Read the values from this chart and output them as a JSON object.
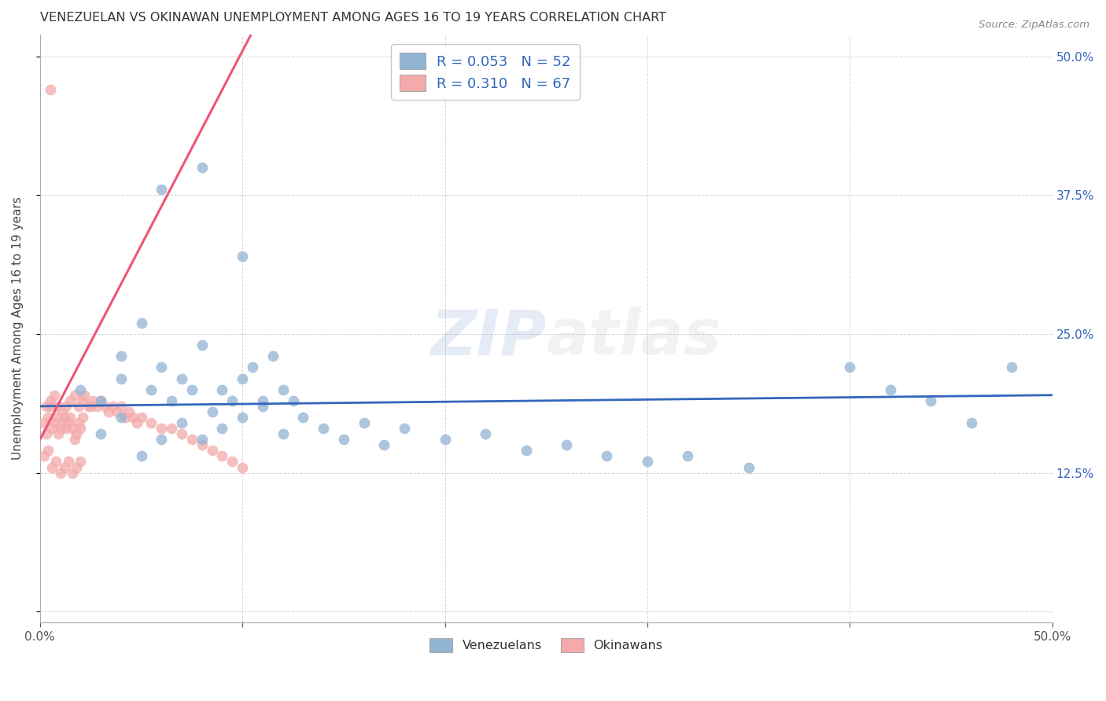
{
  "title": "VENEZUELAN VS OKINAWAN UNEMPLOYMENT AMONG AGES 16 TO 19 YEARS CORRELATION CHART",
  "source": "Source: ZipAtlas.com",
  "ylabel": "Unemployment Among Ages 16 to 19 years",
  "xlim": [
    0,
    0.5
  ],
  "ylim": [
    -0.01,
    0.52
  ],
  "xticks": [
    0.0,
    0.1,
    0.2,
    0.3,
    0.4,
    0.5
  ],
  "xticklabels": [
    "0.0%",
    "",
    "",
    "",
    "",
    "50.0%"
  ],
  "yticks_right": [
    0.0,
    0.125,
    0.25,
    0.375,
    0.5
  ],
  "yticklabels_right": [
    "",
    "12.5%",
    "25.0%",
    "37.5%",
    "50.0%"
  ],
  "watermark_zip": "ZIP",
  "watermark_atlas": "atlas",
  "legend_r_blue": "0.053",
  "legend_n_blue": "52",
  "legend_r_pink": "0.310",
  "legend_n_pink": "67",
  "blue_color": "#92B4D4",
  "pink_color": "#F4AAAA",
  "blue_line_color": "#3366BB",
  "pink_line_color": "#EE5577",
  "ven_x": [
    0.02,
    0.03,
    0.04,
    0.04,
    0.05,
    0.055,
    0.06,
    0.065,
    0.07,
    0.075,
    0.08,
    0.085,
    0.09,
    0.095,
    0.1,
    0.105,
    0.11,
    0.115,
    0.12,
    0.125,
    0.03,
    0.04,
    0.05,
    0.06,
    0.07,
    0.08,
    0.09,
    0.1,
    0.11,
    0.12,
    0.13,
    0.14,
    0.15,
    0.16,
    0.17,
    0.18,
    0.2,
    0.22,
    0.24,
    0.26,
    0.28,
    0.3,
    0.32,
    0.35,
    0.4,
    0.42,
    0.44,
    0.46,
    0.48,
    0.06,
    0.08,
    0.1
  ],
  "ven_y": [
    0.2,
    0.19,
    0.21,
    0.23,
    0.26,
    0.2,
    0.22,
    0.19,
    0.21,
    0.2,
    0.24,
    0.18,
    0.2,
    0.19,
    0.21,
    0.22,
    0.19,
    0.23,
    0.2,
    0.19,
    0.16,
    0.175,
    0.14,
    0.155,
    0.17,
    0.155,
    0.165,
    0.175,
    0.185,
    0.16,
    0.175,
    0.165,
    0.155,
    0.17,
    0.15,
    0.165,
    0.155,
    0.16,
    0.145,
    0.15,
    0.14,
    0.135,
    0.14,
    0.13,
    0.22,
    0.2,
    0.19,
    0.17,
    0.22,
    0.38,
    0.4,
    0.32
  ],
  "oki_x": [
    0.002,
    0.003,
    0.004,
    0.005,
    0.006,
    0.007,
    0.008,
    0.009,
    0.01,
    0.011,
    0.012,
    0.013,
    0.014,
    0.015,
    0.016,
    0.017,
    0.018,
    0.019,
    0.02,
    0.021,
    0.002,
    0.004,
    0.006,
    0.008,
    0.01,
    0.012,
    0.014,
    0.016,
    0.018,
    0.02,
    0.003,
    0.005,
    0.007,
    0.009,
    0.011,
    0.013,
    0.015,
    0.017,
    0.019,
    0.021,
    0.022,
    0.024,
    0.025,
    0.026,
    0.028,
    0.03,
    0.032,
    0.034,
    0.036,
    0.038,
    0.04,
    0.042,
    0.044,
    0.046,
    0.048,
    0.05,
    0.055,
    0.06,
    0.065,
    0.07,
    0.075,
    0.08,
    0.085,
    0.09,
    0.095,
    0.1,
    0.005
  ],
  "oki_y": [
    0.17,
    0.16,
    0.175,
    0.185,
    0.165,
    0.17,
    0.175,
    0.16,
    0.165,
    0.17,
    0.175,
    0.165,
    0.17,
    0.175,
    0.165,
    0.155,
    0.16,
    0.17,
    0.165,
    0.175,
    0.14,
    0.145,
    0.13,
    0.135,
    0.125,
    0.13,
    0.135,
    0.125,
    0.13,
    0.135,
    0.185,
    0.19,
    0.195,
    0.185,
    0.18,
    0.185,
    0.19,
    0.195,
    0.185,
    0.19,
    0.195,
    0.185,
    0.185,
    0.19,
    0.185,
    0.19,
    0.185,
    0.18,
    0.185,
    0.18,
    0.185,
    0.175,
    0.18,
    0.175,
    0.17,
    0.175,
    0.17,
    0.165,
    0.165,
    0.16,
    0.155,
    0.15,
    0.145,
    0.14,
    0.135,
    0.13,
    0.47
  ]
}
